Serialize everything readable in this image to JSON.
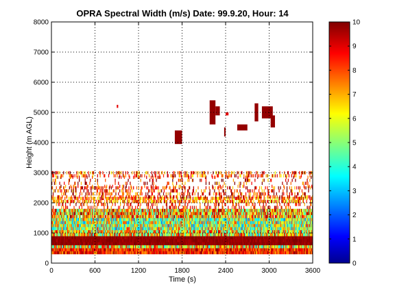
{
  "chart_data": {
    "type": "heatmap",
    "title": "OPRA Spectral Width (m/s)  Date: 99.9.20, Hour: 14",
    "xlabel": "Time (s)",
    "ylabel": "Height (m AGL)",
    "xlim": [
      0,
      3600
    ],
    "ylim": [
      0,
      8000
    ],
    "xticks": [
      "0",
      "600",
      "1200",
      "1800",
      "2400",
      "3000",
      "3600"
    ],
    "xtick_values": [
      0,
      600,
      1200,
      1800,
      2400,
      3000,
      3600
    ],
    "yticks": [
      "0",
      "1000",
      "2000",
      "3000",
      "4000",
      "5000",
      "6000",
      "7000",
      "8000"
    ],
    "ytick_values": [
      0,
      1000,
      2000,
      3000,
      4000,
      5000,
      6000,
      7000,
      8000
    ],
    "grid": true,
    "colorbar": {
      "range": [
        0,
        10
      ],
      "ticks": [
        "0",
        "1",
        "2",
        "3",
        "4",
        "5",
        "6",
        "7",
        "8",
        "9",
        "10"
      ],
      "tick_values": [
        0,
        1,
        2,
        3,
        4,
        5,
        6,
        7,
        8,
        9,
        10
      ],
      "colormap": "jet"
    },
    "layers": [
      {
        "h0": 300,
        "h1": 500,
        "v": 8.5,
        "var": 1.5,
        "fill": 1.0
      },
      {
        "h0": 500,
        "h1": 600,
        "v": 6.5,
        "var": 3.0,
        "fill": 1.0
      },
      {
        "h0": 600,
        "h1": 900,
        "v": 9.8,
        "var": 0.3,
        "fill": 1.0
      },
      {
        "h0": 900,
        "h1": 1100,
        "v": 6.5,
        "var": 3.0,
        "fill": 1.0
      },
      {
        "h0": 1100,
        "h1": 1500,
        "v": 5.5,
        "var": 3.0,
        "fill": 1.0
      },
      {
        "h0": 1500,
        "h1": 1800,
        "v": 7.0,
        "var": 3.0,
        "fill": 0.95
      },
      {
        "h0": 1800,
        "h1": 2000,
        "v": 8.5,
        "var": 1.5,
        "fill": 0.25
      },
      {
        "h0": 2000,
        "h1": 2150,
        "v": 7.5,
        "var": 2.0,
        "fill": 0.6
      },
      {
        "h0": 2150,
        "h1": 2500,
        "v": 8.5,
        "var": 2.0,
        "fill": 0.3
      },
      {
        "h0": 2500,
        "h1": 2850,
        "v": 8.5,
        "var": 2.0,
        "fill": 0.12
      },
      {
        "h0": 2850,
        "h1": 3000,
        "v": 8.0,
        "var": 2.0,
        "fill": 0.3
      }
    ],
    "patches": [
      {
        "t0": 900,
        "t1": 920,
        "h0": 5150,
        "h1": 5250,
        "v": 9.0
      },
      {
        "t0": 1700,
        "t1": 1800,
        "h0": 3950,
        "h1": 4400,
        "v": 9.8
      },
      {
        "t0": 2180,
        "t1": 2260,
        "h0": 4600,
        "h1": 5400,
        "v": 9.8
      },
      {
        "t0": 2260,
        "t1": 2320,
        "h0": 4900,
        "h1": 5200,
        "v": 9.8
      },
      {
        "t0": 2380,
        "t1": 2400,
        "h0": 4200,
        "h1": 4500,
        "v": 9.8
      },
      {
        "t0": 2400,
        "t1": 2440,
        "h0": 4900,
        "h1": 5000,
        "v": 9.0
      },
      {
        "t0": 2560,
        "t1": 2700,
        "h0": 4400,
        "h1": 4600,
        "v": 9.8
      },
      {
        "t0": 2800,
        "t1": 2850,
        "h0": 4700,
        "h1": 5300,
        "v": 9.8
      },
      {
        "t0": 2900,
        "t1": 3050,
        "h0": 4800,
        "h1": 5200,
        "v": 9.8
      },
      {
        "t0": 3020,
        "t1": 3080,
        "h0": 4500,
        "h1": 4900,
        "v": 9.8
      }
    ],
    "time_step": 9,
    "height_step": 100
  }
}
